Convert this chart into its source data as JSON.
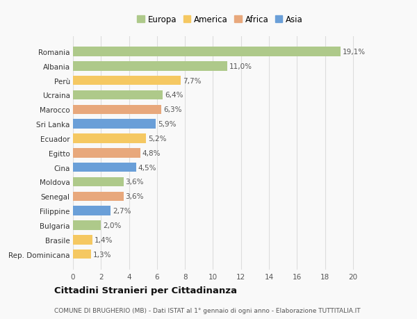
{
  "countries": [
    "Rep. Dominicana",
    "Brasile",
    "Bulgaria",
    "Filippine",
    "Senegal",
    "Moldova",
    "Cina",
    "Egitto",
    "Ecuador",
    "Sri Lanka",
    "Marocco",
    "Ucraina",
    "Perù",
    "Albania",
    "Romania"
  ],
  "values": [
    1.3,
    1.4,
    2.0,
    2.7,
    3.6,
    3.6,
    4.5,
    4.8,
    5.2,
    5.9,
    6.3,
    6.4,
    7.7,
    11.0,
    19.1
  ],
  "labels": [
    "1,3%",
    "1,4%",
    "2,0%",
    "2,7%",
    "3,6%",
    "3,6%",
    "4,5%",
    "4,8%",
    "5,2%",
    "5,9%",
    "6,3%",
    "6,4%",
    "7,7%",
    "11,0%",
    "19,1%"
  ],
  "continents": [
    "America",
    "America",
    "Europa",
    "Asia",
    "Africa",
    "Europa",
    "Asia",
    "Africa",
    "America",
    "Asia",
    "Africa",
    "Europa",
    "America",
    "Europa",
    "Europa"
  ],
  "colors": {
    "Europa": "#aec98a",
    "America": "#f5c862",
    "Africa": "#e8a87c",
    "Asia": "#6a9fd8"
  },
  "legend_order": [
    "Europa",
    "America",
    "Africa",
    "Asia"
  ],
  "title": "Cittadini Stranieri per Cittadinanza",
  "subtitle": "COMUNE DI BRUGHERIO (MB) - Dati ISTAT al 1° gennaio di ogni anno - Elaborazione TUTTITALIA.IT",
  "xlim": [
    0,
    21
  ],
  "xticks": [
    0,
    2,
    4,
    6,
    8,
    10,
    12,
    14,
    16,
    18,
    20
  ],
  "background_color": "#f9f9f9",
  "bar_height": 0.65,
  "grid_color": "#dddddd"
}
